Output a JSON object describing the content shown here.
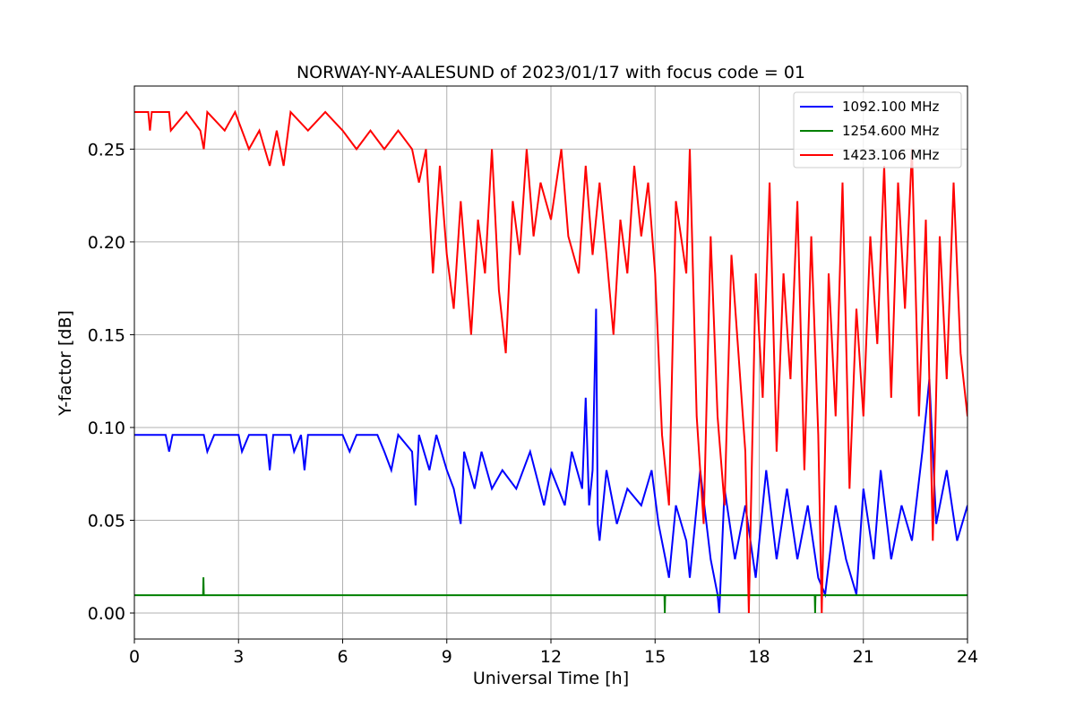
{
  "chart_data": {
    "type": "line",
    "title": "NORWAY-NY-AALESUND of 2023/01/17 with focus code = 01",
    "xlabel": "Universal Time [h]",
    "ylabel": "Y-factor [dB]",
    "xlim": [
      0,
      24
    ],
    "ylim": [
      -0.014,
      0.284
    ],
    "xticks": [
      0,
      3,
      6,
      9,
      12,
      15,
      18,
      21,
      24
    ],
    "xtick_labels": [
      "0",
      "3",
      "6",
      "9",
      "12",
      "15",
      "18",
      "21",
      "24"
    ],
    "yticks": [
      0.0,
      0.05,
      0.1,
      0.15,
      0.2,
      0.25
    ],
    "ytick_labels": [
      "0.00",
      "0.05",
      "0.10",
      "0.15",
      "0.20",
      "0.25"
    ],
    "grid": true,
    "legend_position": "top-right",
    "series": [
      {
        "name": "1092.100 MHz",
        "color": "#0000ff",
        "points": [
          [
            0.0,
            0.096
          ],
          [
            0.9,
            0.096
          ],
          [
            1.0,
            0.087
          ],
          [
            1.1,
            0.096
          ],
          [
            2.0,
            0.096
          ],
          [
            2.1,
            0.087
          ],
          [
            2.3,
            0.096
          ],
          [
            3.0,
            0.096
          ],
          [
            3.1,
            0.087
          ],
          [
            3.3,
            0.096
          ],
          [
            3.8,
            0.096
          ],
          [
            3.9,
            0.077
          ],
          [
            4.0,
            0.096
          ],
          [
            4.5,
            0.096
          ],
          [
            4.6,
            0.087
          ],
          [
            4.8,
            0.096
          ],
          [
            4.9,
            0.077
          ],
          [
            5.0,
            0.096
          ],
          [
            6.0,
            0.096
          ],
          [
            6.2,
            0.087
          ],
          [
            6.4,
            0.096
          ],
          [
            7.0,
            0.096
          ],
          [
            7.2,
            0.087
          ],
          [
            7.4,
            0.077
          ],
          [
            7.6,
            0.096
          ],
          [
            8.0,
            0.087
          ],
          [
            8.1,
            0.058
          ],
          [
            8.2,
            0.096
          ],
          [
            8.5,
            0.077
          ],
          [
            8.7,
            0.096
          ],
          [
            9.0,
            0.077
          ],
          [
            9.2,
            0.067
          ],
          [
            9.4,
            0.048
          ],
          [
            9.5,
            0.087
          ],
          [
            9.8,
            0.067
          ],
          [
            10.0,
            0.087
          ],
          [
            10.3,
            0.067
          ],
          [
            10.6,
            0.077
          ],
          [
            11.0,
            0.067
          ],
          [
            11.4,
            0.087
          ],
          [
            11.8,
            0.058
          ],
          [
            12.0,
            0.077
          ],
          [
            12.4,
            0.058
          ],
          [
            12.6,
            0.087
          ],
          [
            12.9,
            0.067
          ],
          [
            13.0,
            0.116
          ],
          [
            13.1,
            0.058
          ],
          [
            13.2,
            0.077
          ],
          [
            13.3,
            0.164
          ],
          [
            13.35,
            0.048
          ],
          [
            13.4,
            0.039
          ],
          [
            13.6,
            0.077
          ],
          [
            13.9,
            0.048
          ],
          [
            14.2,
            0.067
          ],
          [
            14.6,
            0.058
          ],
          [
            14.9,
            0.077
          ],
          [
            15.1,
            0.048
          ],
          [
            15.3,
            0.029
          ],
          [
            15.4,
            0.019
          ],
          [
            15.6,
            0.058
          ],
          [
            15.9,
            0.039
          ],
          [
            16.0,
            0.019
          ],
          [
            16.3,
            0.077
          ],
          [
            16.6,
            0.029
          ],
          [
            16.8,
            0.01
          ],
          [
            16.85,
            0.0
          ],
          [
            17.0,
            0.067
          ],
          [
            17.3,
            0.029
          ],
          [
            17.6,
            0.058
          ],
          [
            17.9,
            0.019
          ],
          [
            18.2,
            0.077
          ],
          [
            18.5,
            0.029
          ],
          [
            18.8,
            0.067
          ],
          [
            19.1,
            0.029
          ],
          [
            19.4,
            0.058
          ],
          [
            19.7,
            0.019
          ],
          [
            19.9,
            0.01
          ],
          [
            20.2,
            0.058
          ],
          [
            20.5,
            0.029
          ],
          [
            20.8,
            0.01
          ],
          [
            21.0,
            0.067
          ],
          [
            21.3,
            0.029
          ],
          [
            21.5,
            0.077
          ],
          [
            21.8,
            0.029
          ],
          [
            22.1,
            0.058
          ],
          [
            22.4,
            0.039
          ],
          [
            22.7,
            0.087
          ],
          [
            22.9,
            0.126
          ],
          [
            23.1,
            0.048
          ],
          [
            23.4,
            0.077
          ],
          [
            23.7,
            0.039
          ],
          [
            24.0,
            0.058
          ]
        ]
      },
      {
        "name": "1254.600 MHz",
        "color": "#008000",
        "points": [
          [
            0.0,
            0.0096
          ],
          [
            1.98,
            0.0096
          ],
          [
            1.99,
            0.0193
          ],
          [
            2.0,
            0.0096
          ],
          [
            15.27,
            0.0096
          ],
          [
            15.28,
            0.0
          ],
          [
            15.29,
            0.0096
          ],
          [
            19.6,
            0.0096
          ],
          [
            19.61,
            0.0
          ],
          [
            19.62,
            0.0096
          ],
          [
            24.0,
            0.0096
          ]
        ]
      },
      {
        "name": "1423.106 MHz",
        "color": "#ff0000",
        "points": [
          [
            0.0,
            0.27
          ],
          [
            0.4,
            0.27
          ],
          [
            0.45,
            0.26
          ],
          [
            0.5,
            0.27
          ],
          [
            1.0,
            0.27
          ],
          [
            1.05,
            0.26
          ],
          [
            1.5,
            0.27
          ],
          [
            1.9,
            0.26
          ],
          [
            2.0,
            0.25
          ],
          [
            2.1,
            0.27
          ],
          [
            2.6,
            0.26
          ],
          [
            2.9,
            0.27
          ],
          [
            3.3,
            0.25
          ],
          [
            3.6,
            0.26
          ],
          [
            3.9,
            0.241
          ],
          [
            4.1,
            0.26
          ],
          [
            4.3,
            0.241
          ],
          [
            4.5,
            0.27
          ],
          [
            5.0,
            0.26
          ],
          [
            5.5,
            0.27
          ],
          [
            6.0,
            0.26
          ],
          [
            6.4,
            0.25
          ],
          [
            6.8,
            0.26
          ],
          [
            7.2,
            0.25
          ],
          [
            7.6,
            0.26
          ],
          [
            8.0,
            0.25
          ],
          [
            8.2,
            0.232
          ],
          [
            8.4,
            0.25
          ],
          [
            8.6,
            0.183
          ],
          [
            8.8,
            0.241
          ],
          [
            9.0,
            0.193
          ],
          [
            9.2,
            0.164
          ],
          [
            9.4,
            0.222
          ],
          [
            9.6,
            0.174
          ],
          [
            9.7,
            0.15
          ],
          [
            9.9,
            0.212
          ],
          [
            10.1,
            0.183
          ],
          [
            10.3,
            0.25
          ],
          [
            10.5,
            0.174
          ],
          [
            10.7,
            0.14
          ],
          [
            10.9,
            0.222
          ],
          [
            11.1,
            0.193
          ],
          [
            11.3,
            0.25
          ],
          [
            11.5,
            0.203
          ],
          [
            11.7,
            0.232
          ],
          [
            12.0,
            0.212
          ],
          [
            12.3,
            0.25
          ],
          [
            12.5,
            0.203
          ],
          [
            12.8,
            0.183
          ],
          [
            13.0,
            0.241
          ],
          [
            13.2,
            0.193
          ],
          [
            13.4,
            0.232
          ],
          [
            13.6,
            0.193
          ],
          [
            13.8,
            0.15
          ],
          [
            14.0,
            0.212
          ],
          [
            14.2,
            0.183
          ],
          [
            14.4,
            0.241
          ],
          [
            14.6,
            0.203
          ],
          [
            14.8,
            0.232
          ],
          [
            15.0,
            0.183
          ],
          [
            15.2,
            0.096
          ],
          [
            15.4,
            0.058
          ],
          [
            15.6,
            0.222
          ],
          [
            15.9,
            0.183
          ],
          [
            16.0,
            0.25
          ],
          [
            16.2,
            0.106
          ],
          [
            16.4,
            0.048
          ],
          [
            16.6,
            0.203
          ],
          [
            16.8,
            0.106
          ],
          [
            17.0,
            0.058
          ],
          [
            17.2,
            0.193
          ],
          [
            17.4,
            0.14
          ],
          [
            17.6,
            0.087
          ],
          [
            17.7,
            0.0
          ],
          [
            17.9,
            0.183
          ],
          [
            18.1,
            0.116
          ],
          [
            18.3,
            0.232
          ],
          [
            18.5,
            0.087
          ],
          [
            18.7,
            0.183
          ],
          [
            18.9,
            0.126
          ],
          [
            19.1,
            0.222
          ],
          [
            19.3,
            0.077
          ],
          [
            19.5,
            0.203
          ],
          [
            19.7,
            0.096
          ],
          [
            19.8,
            0.0
          ],
          [
            20.0,
            0.183
          ],
          [
            20.2,
            0.106
          ],
          [
            20.4,
            0.232
          ],
          [
            20.6,
            0.067
          ],
          [
            20.8,
            0.164
          ],
          [
            21.0,
            0.106
          ],
          [
            21.2,
            0.203
          ],
          [
            21.4,
            0.145
          ],
          [
            21.6,
            0.241
          ],
          [
            21.8,
            0.116
          ],
          [
            22.0,
            0.232
          ],
          [
            22.2,
            0.164
          ],
          [
            22.4,
            0.25
          ],
          [
            22.6,
            0.106
          ],
          [
            22.8,
            0.212
          ],
          [
            23.0,
            0.039
          ],
          [
            23.2,
            0.203
          ],
          [
            23.4,
            0.126
          ],
          [
            23.6,
            0.232
          ],
          [
            23.8,
            0.14
          ],
          [
            24.0,
            0.106
          ]
        ]
      }
    ]
  }
}
